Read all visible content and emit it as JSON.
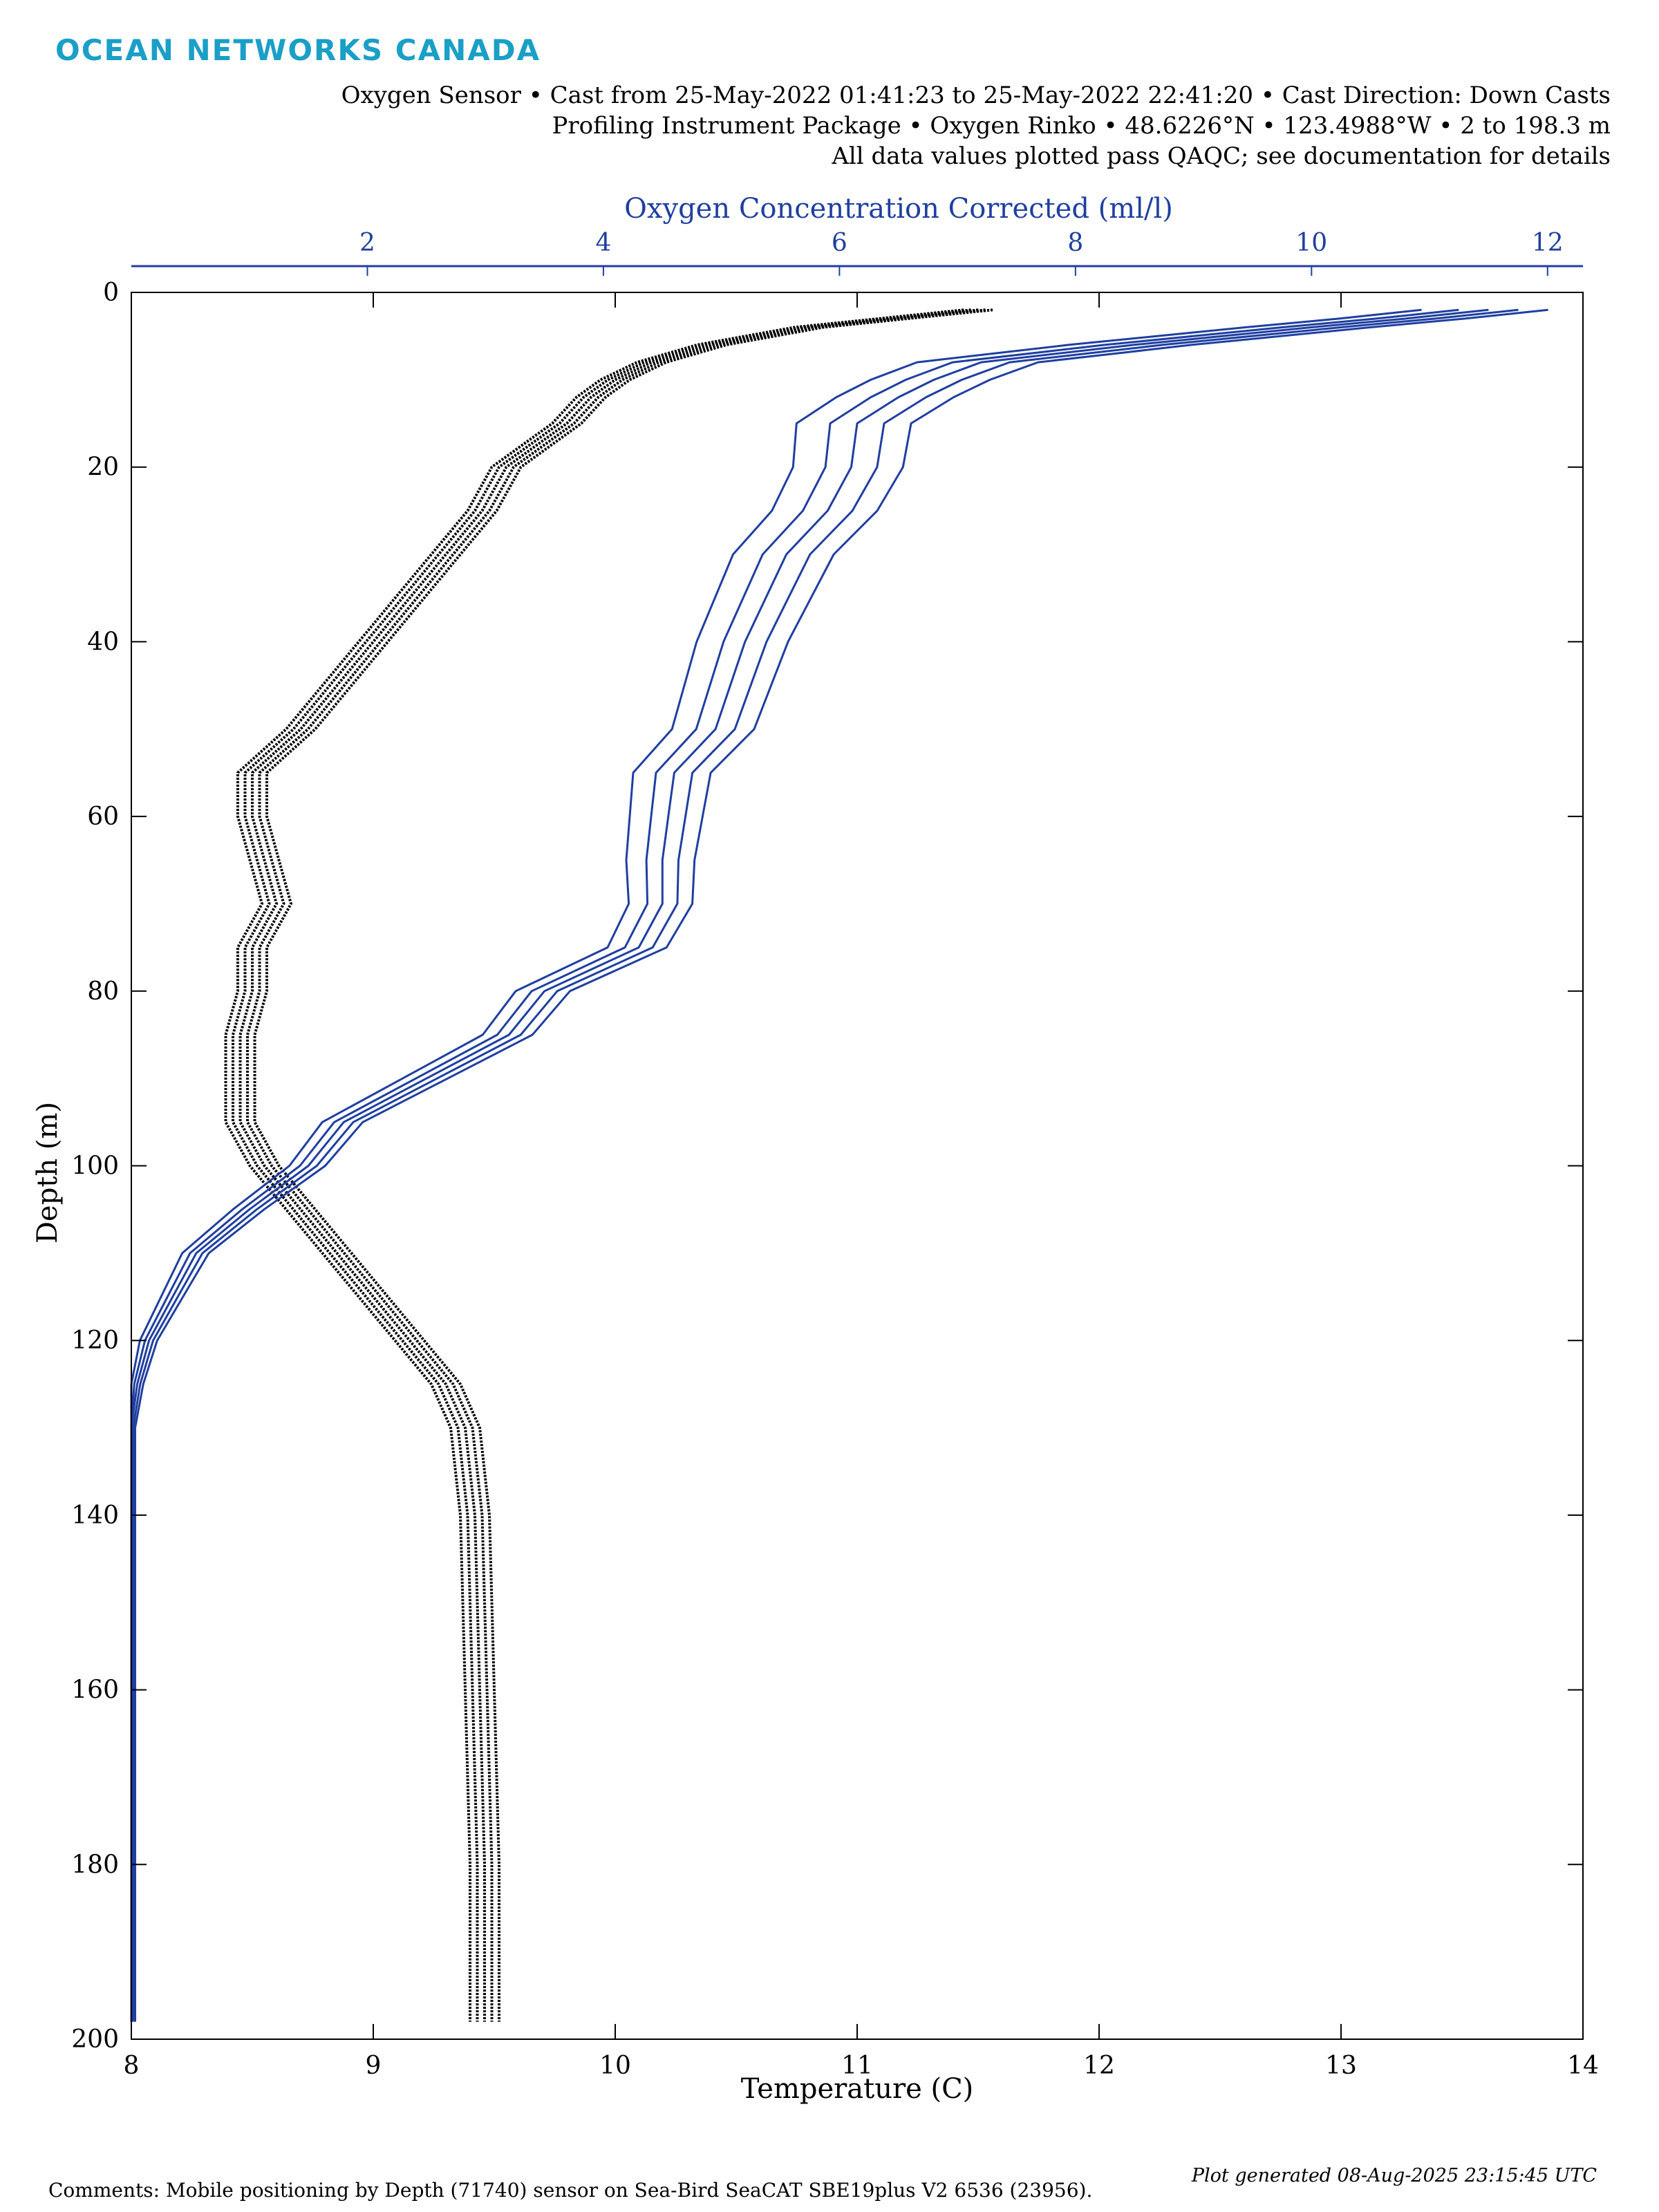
{
  "logo": "OCEAN NETWORKS CANADA",
  "header": {
    "line1": "Oxygen Sensor • Cast from 25-May-2022 01:41:23 to 25-May-2022 22:41:20 • Cast Direction: Down Casts",
    "line2": "Profiling Instrument Package • Oxygen Rinko • 48.6226°N • 123.4988°W • 2 to 198.3 m",
    "line3": "All data values plotted pass QAQC; see documentation for details"
  },
  "footer": {
    "comments": "Comments: Mobile positioning by Depth (71740) sensor on Sea-Bird SeaCAT SBE19plus V2 6536 (23956).",
    "generated": "Plot generated 08-Aug-2025 23:15:45 UTC"
  },
  "colors": {
    "temperature": "#000000",
    "oxygen": "#1f3fa0",
    "logo": "#1a9fc6"
  },
  "chart_data": {
    "type": "line",
    "xlabel": "Temperature (C)",
    "ylabel": "Depth (m)",
    "x2label": "Oxygen Concentration Corrected (ml/l)",
    "xlim": [
      8,
      14
    ],
    "x2lim": [
      0,
      12.3
    ],
    "ylim": [
      0,
      200
    ],
    "y_reversed": true,
    "grid": false,
    "xticks": [
      "8",
      "9",
      "10",
      "11",
      "12",
      "13",
      "14"
    ],
    "x2ticks": [
      "2",
      "4",
      "6",
      "8",
      "10",
      "12"
    ],
    "yticks": [
      "0",
      "20",
      "40",
      "60",
      "80",
      "100",
      "120",
      "140",
      "160",
      "180",
      "200"
    ],
    "series": [
      {
        "axis": "bottom",
        "depth": [
          2,
          4,
          6,
          8,
          10,
          12,
          15,
          20,
          25,
          30,
          35,
          40,
          45,
          50,
          55,
          60,
          65,
          70,
          75,
          80,
          85,
          90,
          95,
          100,
          105,
          110,
          115,
          120,
          125,
          130,
          135,
          140,
          150,
          160,
          170,
          180,
          190,
          198
        ],
        "values": [
          11.5,
          10.8,
          10.4,
          10.15,
          10.0,
          9.9,
          9.8,
          9.55,
          9.45,
          9.3,
          9.15,
          9.0,
          8.85,
          8.7,
          8.5,
          8.5,
          8.55,
          8.6,
          8.5,
          8.5,
          8.45,
          8.45,
          8.45,
          8.55,
          8.7,
          8.85,
          9.0,
          9.15,
          9.3,
          9.38,
          9.4,
          9.42,
          9.43,
          9.44,
          9.45,
          9.46,
          9.46,
          9.46
        ]
      },
      {
        "axis": "top",
        "depth": [
          2,
          3,
          4,
          6,
          8,
          10,
          12,
          15,
          20,
          25,
          30,
          40,
          50,
          55,
          60,
          65,
          70,
          75,
          80,
          85,
          90,
          95,
          100,
          105,
          110,
          115,
          120,
          125,
          130,
          150,
          170,
          198
        ],
        "values": [
          11.5,
          10.8,
          10.0,
          8.5,
          7.2,
          6.8,
          6.5,
          6.15,
          6.1,
          5.9,
          5.55,
          5.2,
          4.95,
          4.6,
          4.55,
          4.5,
          4.5,
          4.3,
          3.5,
          3.2,
          2.5,
          1.8,
          1.5,
          1.0,
          0.55,
          0.35,
          0.15,
          0.05,
          0.0,
          0.0,
          0.0,
          0.0
        ]
      }
    ]
  }
}
